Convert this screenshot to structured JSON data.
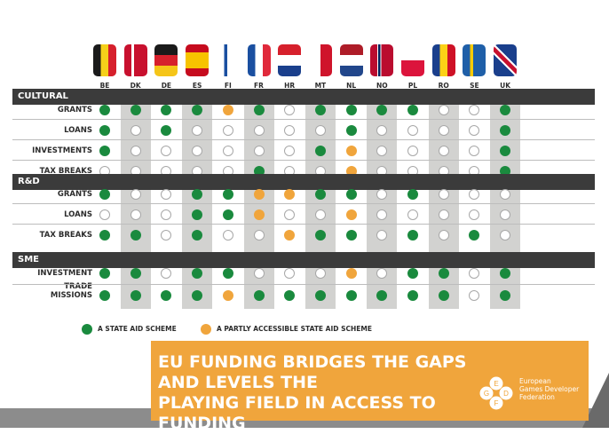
{
  "chart_data": {
    "type": "table",
    "columns": [
      "BE",
      "DK",
      "DE",
      "ES",
      "FI",
      "FR",
      "HR",
      "MT",
      "NL",
      "NO",
      "PL",
      "RO",
      "SE",
      "UK"
    ],
    "sections": [
      {
        "name": "CULTURAL",
        "rows": [
          {
            "label": "GRANTS",
            "values": [
              "full",
              "full",
              "full",
              "full",
              "partial",
              "full",
              "none",
              "full",
              "full",
              "full",
              "full",
              "none",
              "none",
              "full"
            ]
          },
          {
            "label": "LOANS",
            "values": [
              "full",
              "none",
              "full",
              "none",
              "none",
              "none",
              "none",
              "none",
              "full",
              "none",
              "none",
              "none",
              "none",
              "full"
            ]
          },
          {
            "label": "INVESTMENTS",
            "values": [
              "full",
              "none",
              "none",
              "none",
              "none",
              "none",
              "none",
              "full",
              "partial",
              "none",
              "none",
              "none",
              "none",
              "full"
            ]
          },
          {
            "label": "TAX BREAKS",
            "values": [
              "none",
              "none",
              "none",
              "none",
              "none",
              "full",
              "none",
              "none",
              "partial",
              "none",
              "none",
              "none",
              "none",
              "full"
            ]
          }
        ]
      },
      {
        "name": "R&D",
        "rows": [
          {
            "label": "GRANTS",
            "values": [
              "full",
              "none",
              "none",
              "full",
              "full",
              "partial",
              "partial",
              "full",
              "full",
              "none",
              "full",
              "none",
              "none",
              "none"
            ]
          },
          {
            "label": "LOANS",
            "values": [
              "none",
              "none",
              "none",
              "full",
              "full",
              "partial",
              "none",
              "none",
              "partial",
              "none",
              "none",
              "none",
              "none",
              "none"
            ]
          },
          {
            "label": "TAX BREAKS",
            "values": [
              "full",
              "full",
              "none",
              "full",
              "none",
              "none",
              "partial",
              "full",
              "full",
              "none",
              "full",
              "none",
              "full",
              "none"
            ]
          }
        ]
      },
      {
        "name": "SME",
        "rows": [
          {
            "label": "INVESTMENT",
            "values": [
              "full",
              "full",
              "none",
              "full",
              "full",
              "none",
              "none",
              "none",
              "partial",
              "none",
              "full",
              "full",
              "none",
              "full"
            ]
          },
          {
            "label": "TRADE\nMISSIONS",
            "values": [
              "full",
              "full",
              "full",
              "full",
              "partial",
              "full",
              "full",
              "full",
              "full",
              "full",
              "full",
              "full",
              "none",
              "full"
            ]
          }
        ]
      }
    ],
    "legend": [
      {
        "key": "full",
        "label": "A STATE AID SCHEME",
        "color": "#1a8a3e"
      },
      {
        "key": "partial",
        "label": "A PARTLY ACCESSIBLE STATE AID SCHEME",
        "color": "#f0a53c"
      }
    ]
  },
  "banner": {
    "line1": "EU FUNDING BRIDGES THE GAPS AND LEVELS THE",
    "line2": "PLAYING FIELD IN ACCESS TO FUNDING"
  },
  "logo": {
    "letters": [
      "E",
      "G",
      "D",
      "F"
    ],
    "org_line1": "European",
    "org_line2": "Games Developer",
    "org_line3": "Federation"
  },
  "flags_icons": [
    "belgium-flag-icon",
    "denmark-flag-icon",
    "germany-flag-icon",
    "spain-flag-icon",
    "finland-flag-icon",
    "france-flag-icon",
    "croatia-flag-icon",
    "malta-flag-icon",
    "netherlands-flag-icon",
    "norway-flag-icon",
    "poland-flag-icon",
    "romania-flag-icon",
    "sweden-flag-icon",
    "uk-flag-icon"
  ]
}
